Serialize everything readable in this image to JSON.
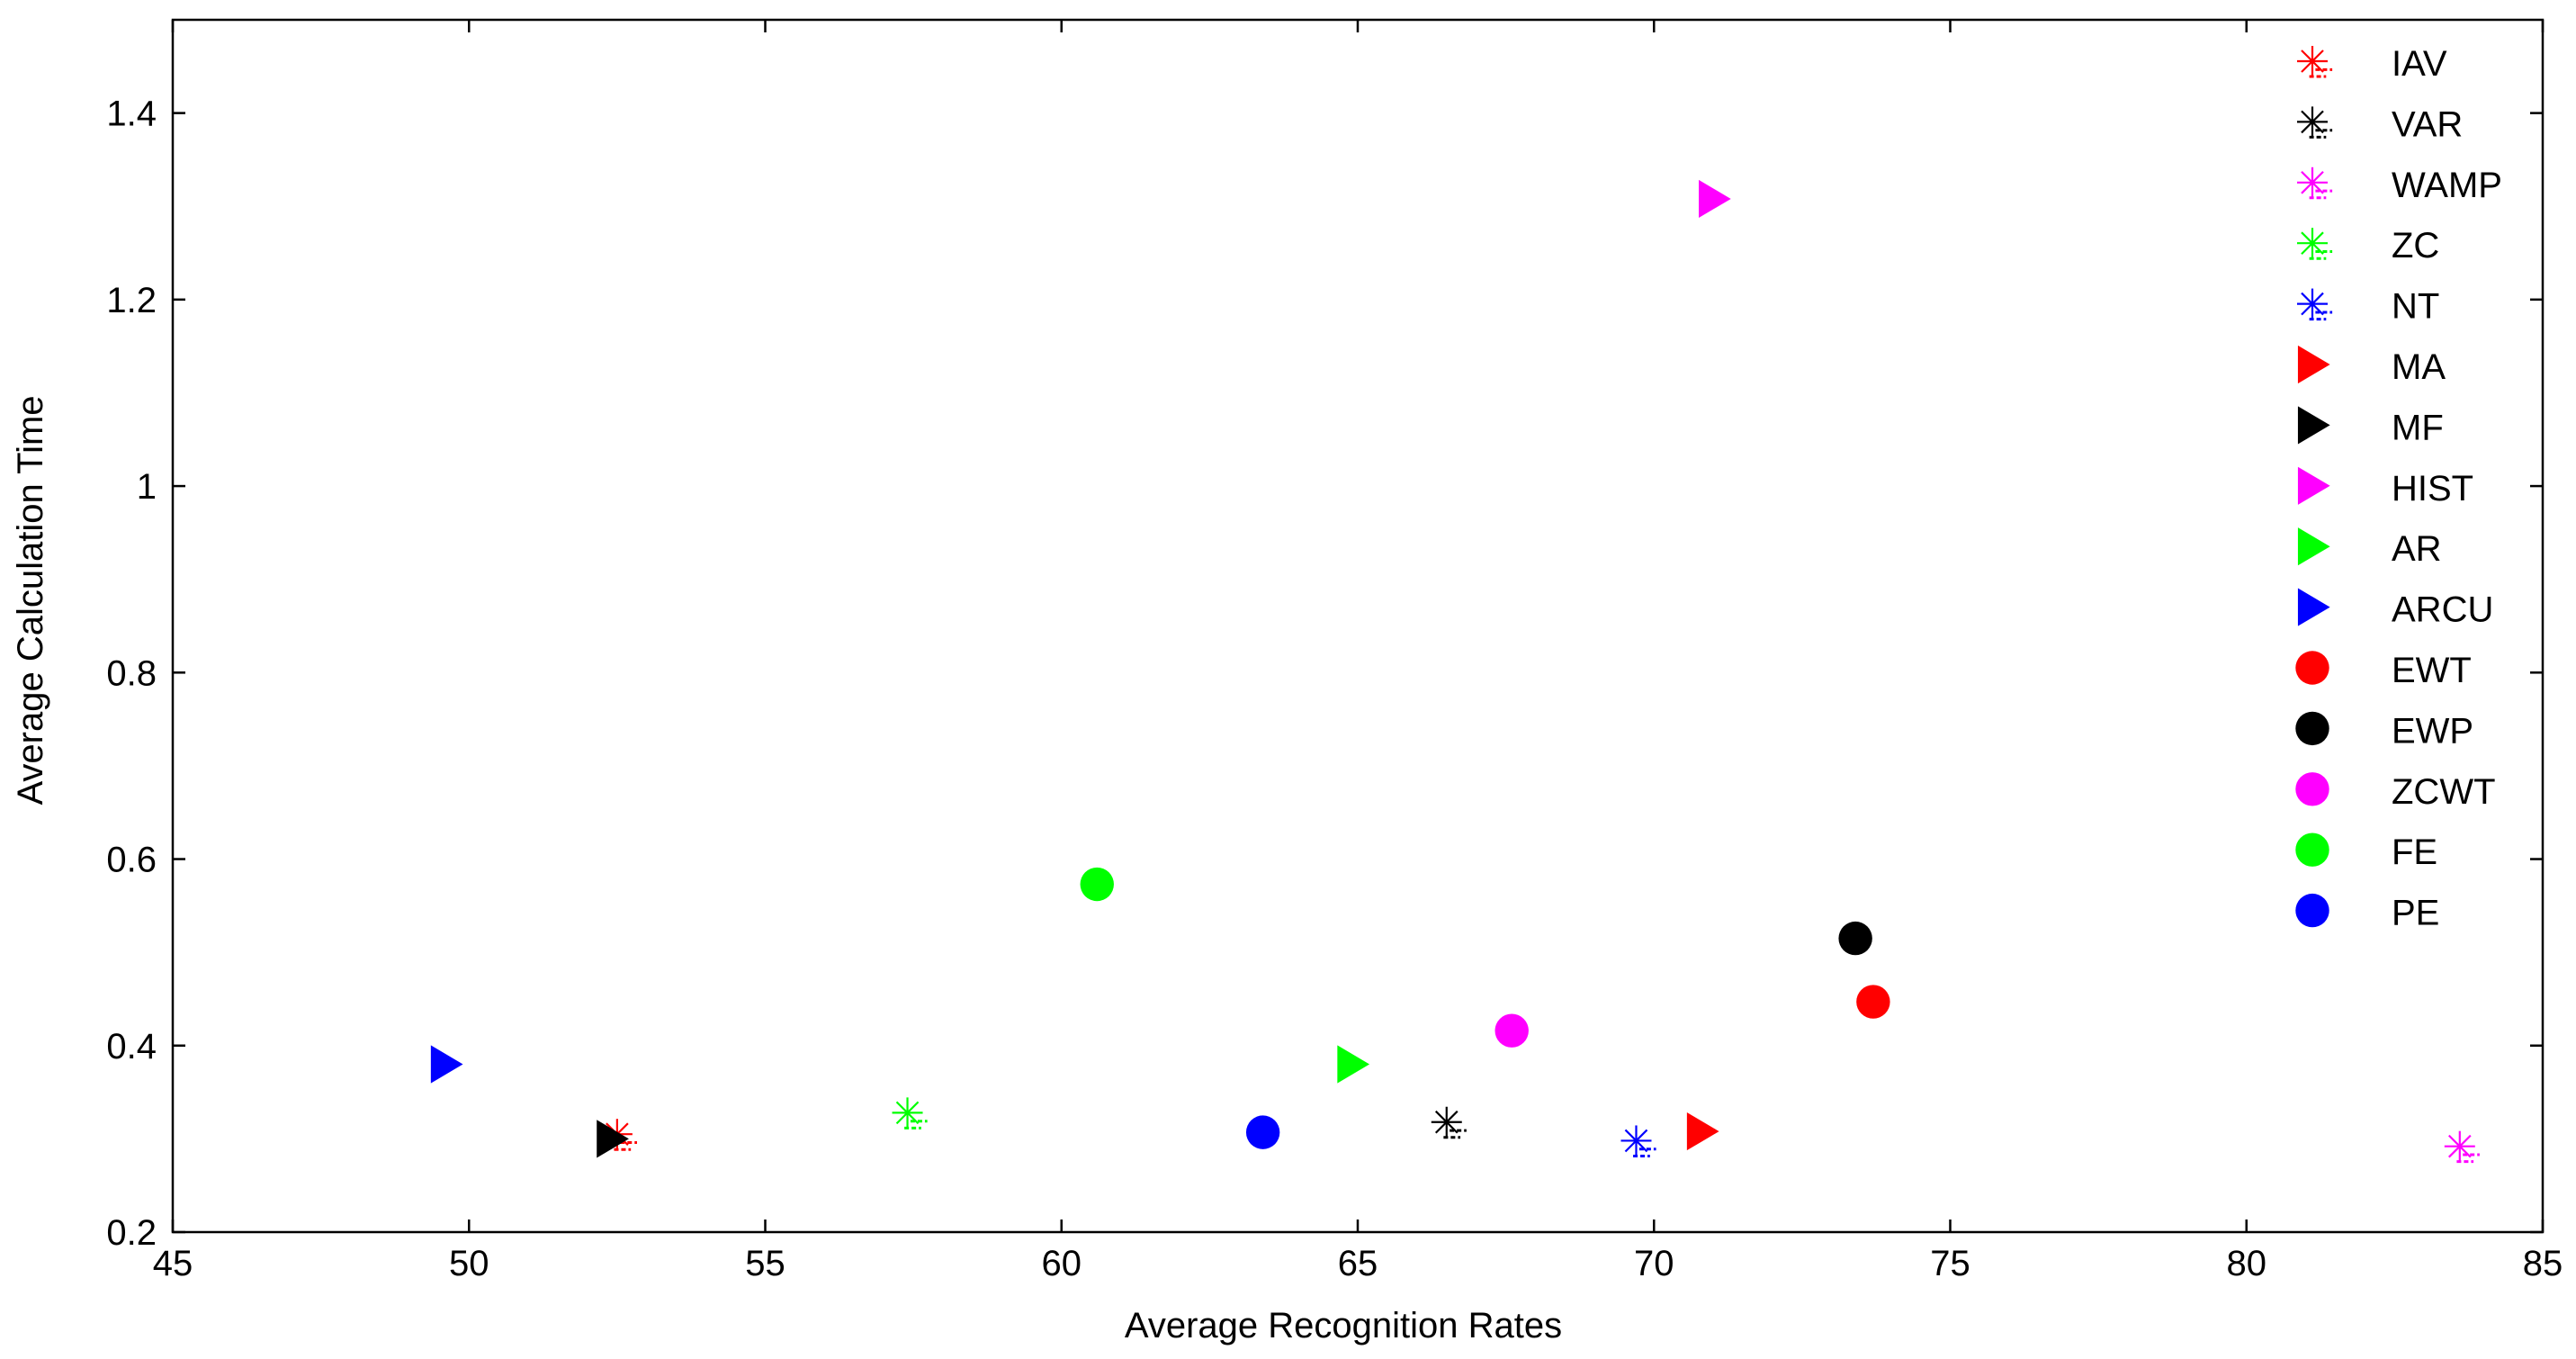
{
  "chart_data": {
    "type": "scatter",
    "title": "",
    "xlabel": "Average Recognition Rates",
    "ylabel": "Average Calculation Time",
    "xlim": [
      45,
      85
    ],
    "ylim": [
      0.2,
      1.5
    ],
    "xticks": [
      45,
      50,
      55,
      60,
      65,
      70,
      75,
      80,
      85
    ],
    "yticks": [
      0.2,
      0.4,
      0.6,
      0.8,
      1.0,
      1.2,
      1.4
    ],
    "xtick_labels": [
      "45",
      "50",
      "55",
      "60",
      "65",
      "70",
      "75",
      "80",
      "85"
    ],
    "ytick_labels": [
      "0.2",
      "0.4",
      "0.6",
      "0.8",
      "1",
      "1.2",
      "1.4"
    ],
    "grid": false,
    "legend_position": "top-right",
    "series": [
      {
        "name": "IAV",
        "marker": "star",
        "color": "#ff0000",
        "x": 52.5,
        "y": 0.305
      },
      {
        "name": "VAR",
        "marker": "star",
        "color": "#000000",
        "x": 66.5,
        "y": 0.318
      },
      {
        "name": "WAMP",
        "marker": "star",
        "color": "#ff00ff",
        "x": 83.6,
        "y": 0.292
      },
      {
        "name": "ZC",
        "marker": "star",
        "color": "#00ff00",
        "x": 57.4,
        "y": 0.328
      },
      {
        "name": "NT",
        "marker": "star",
        "color": "#0000ff",
        "x": 69.7,
        "y": 0.298
      },
      {
        "name": "MA",
        "marker": "triangle",
        "color": "#ff0000",
        "x": 70.8,
        "y": 0.308
      },
      {
        "name": "MF",
        "marker": "triangle",
        "color": "#000000",
        "x": 52.4,
        "y": 0.3
      },
      {
        "name": "HIST",
        "marker": "triangle",
        "color": "#ff00ff",
        "x": 71.0,
        "y": 1.308
      },
      {
        "name": "AR",
        "marker": "triangle",
        "color": "#00ff00",
        "x": 64.9,
        "y": 0.38
      },
      {
        "name": "ARCU",
        "marker": "triangle",
        "color": "#0000ff",
        "x": 49.6,
        "y": 0.38
      },
      {
        "name": "EWT",
        "marker": "circle",
        "color": "#ff0000",
        "x": 73.7,
        "y": 0.447
      },
      {
        "name": "EWP",
        "marker": "circle",
        "color": "#000000",
        "x": 73.4,
        "y": 0.515
      },
      {
        "name": "ZCWT",
        "marker": "circle",
        "color": "#ff00ff",
        "x": 67.6,
        "y": 0.416
      },
      {
        "name": "FE",
        "marker": "circle",
        "color": "#00ff00",
        "x": 60.6,
        "y": 0.573
      },
      {
        "name": "PE",
        "marker": "circle",
        "color": "#0000ff",
        "x": 63.4,
        "y": 0.307
      }
    ]
  }
}
